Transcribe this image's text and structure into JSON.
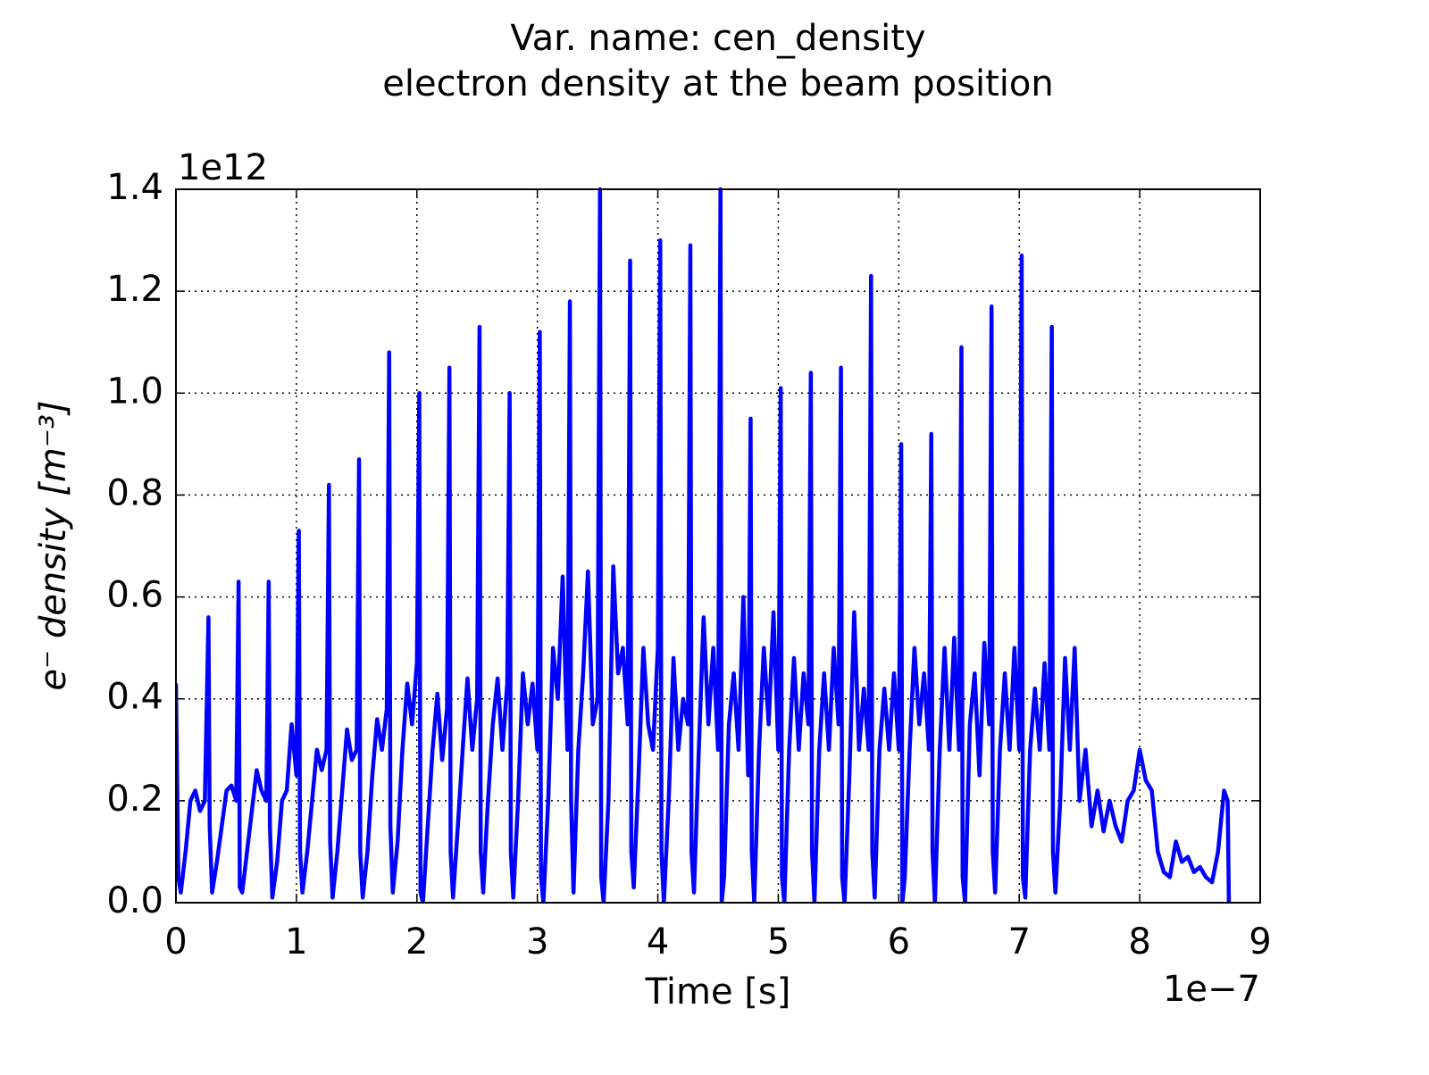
{
  "chart_data": {
    "type": "line",
    "title": "Var. name: cen_density",
    "subtitle": "electron density at the beam position",
    "x_label": "Time [s]",
    "y_label": "e⁻ density [m⁻³]",
    "x_offset": "1e−7",
    "y_offset": "1e12",
    "color": "#0000ff",
    "grid": true,
    "xlim": [
      0,
      9
    ],
    "xticks": [
      0,
      1,
      2,
      3,
      4,
      5,
      6,
      7,
      8,
      9
    ],
    "ylim": [
      0,
      1.4
    ],
    "yticks": [
      {
        "value": 0,
        "label": "0.0"
      },
      0.2,
      0.4,
      0.6,
      0.8,
      {
        "value": 1,
        "label": "1.0"
      },
      1.2,
      1.4
    ],
    "x": [
      0,
      0.02,
      0.04,
      0.08,
      0.12,
      0.16,
      0.2,
      0.24,
      0.27,
      0.28,
      0.3,
      0.34,
      0.38,
      0.42,
      0.46,
      0.5,
      0.52,
      0.53,
      0.55,
      0.59,
      0.63,
      0.67,
      0.71,
      0.75,
      0.77,
      0.78,
      0.8,
      0.84,
      0.88,
      0.92,
      0.96,
      1.0,
      1.02,
      1.03,
      1.05,
      1.09,
      1.13,
      1.17,
      1.21,
      1.25,
      1.27,
      1.28,
      1.3,
      1.34,
      1.38,
      1.42,
      1.46,
      1.5,
      1.52,
      1.53,
      1.55,
      1.59,
      1.63,
      1.67,
      1.71,
      1.75,
      1.77,
      1.78,
      1.8,
      1.84,
      1.88,
      1.92,
      1.96,
      2.0,
      2.02,
      2.03,
      2.05,
      2.09,
      2.13,
      2.17,
      2.21,
      2.25,
      2.27,
      2.28,
      2.3,
      2.34,
      2.38,
      2.42,
      2.46,
      2.5,
      2.52,
      2.53,
      2.55,
      2.59,
      2.63,
      2.67,
      2.71,
      2.75,
      2.77,
      2.78,
      2.8,
      2.84,
      2.88,
      2.92,
      2.96,
      3.0,
      3.02,
      3.03,
      3.05,
      3.09,
      3.13,
      3.17,
      3.21,
      3.25,
      3.27,
      3.28,
      3.3,
      3.34,
      3.38,
      3.42,
      3.46,
      3.5,
      3.52,
      3.53,
      3.55,
      3.59,
      3.63,
      3.67,
      3.71,
      3.75,
      3.77,
      3.78,
      3.8,
      3.84,
      3.88,
      3.92,
      3.96,
      4.0,
      4.02,
      4.03,
      4.05,
      4.09,
      4.13,
      4.17,
      4.21,
      4.25,
      4.27,
      4.28,
      4.3,
      4.34,
      4.38,
      4.42,
      4.46,
      4.5,
      4.52,
      4.53,
      4.55,
      4.59,
      4.63,
      4.67,
      4.71,
      4.75,
      4.77,
      4.78,
      4.8,
      4.84,
      4.88,
      4.92,
      4.96,
      5.0,
      5.02,
      5.03,
      5.05,
      5.09,
      5.13,
      5.17,
      5.21,
      5.25,
      5.27,
      5.28,
      5.3,
      5.34,
      5.38,
      5.42,
      5.46,
      5.5,
      5.52,
      5.53,
      5.55,
      5.59,
      5.63,
      5.67,
      5.71,
      5.75,
      5.77,
      5.78,
      5.8,
      5.84,
      5.88,
      5.92,
      5.96,
      6.0,
      6.02,
      6.03,
      6.05,
      6.09,
      6.13,
      6.17,
      6.21,
      6.25,
      6.27,
      6.28,
      6.3,
      6.34,
      6.38,
      6.42,
      6.46,
      6.5,
      6.52,
      6.53,
      6.55,
      6.59,
      6.63,
      6.67,
      6.71,
      6.75,
      6.77,
      6.78,
      6.8,
      6.84,
      6.88,
      6.92,
      6.96,
      7.0,
      7.02,
      7.03,
      7.05,
      7.09,
      7.13,
      7.17,
      7.21,
      7.25,
      7.27,
      7.28,
      7.3,
      7.34,
      7.38,
      7.42,
      7.46,
      7.5,
      7.55,
      7.6,
      7.65,
      7.7,
      7.75,
      7.8,
      7.85,
      7.9,
      7.95,
      8.0,
      8.05,
      8.1,
      8.15,
      8.2,
      8.25,
      8.3,
      8.35,
      8.4,
      8.45,
      8.5,
      8.55,
      8.6,
      8.65,
      8.7,
      8.73,
      8.74
    ],
    "values": [
      0.43,
      0.05,
      0.02,
      0.1,
      0.2,
      0.22,
      0.18,
      0.2,
      0.56,
      0.15,
      0.02,
      0.08,
      0.15,
      0.22,
      0.23,
      0.2,
      0.63,
      0.03,
      0.02,
      0.1,
      0.18,
      0.26,
      0.22,
      0.2,
      0.63,
      0.15,
      0.01,
      0.08,
      0.2,
      0.22,
      0.35,
      0.25,
      0.73,
      0.1,
      0.02,
      0.1,
      0.2,
      0.3,
      0.26,
      0.3,
      0.82,
      0.12,
      0.01,
      0.1,
      0.22,
      0.34,
      0.28,
      0.3,
      0.87,
      0.1,
      0.01,
      0.1,
      0.25,
      0.36,
      0.3,
      0.38,
      1.08,
      0.15,
      0.02,
      0.12,
      0.3,
      0.43,
      0.35,
      0.47,
      1.0,
      0.02,
      0.0,
      0.15,
      0.3,
      0.41,
      0.28,
      0.38,
      1.05,
      0.1,
      0.01,
      0.15,
      0.3,
      0.44,
      0.3,
      0.4,
      1.13,
      0.1,
      0.02,
      0.2,
      0.35,
      0.44,
      0.3,
      0.43,
      1.0,
      0.1,
      0.01,
      0.2,
      0.45,
      0.35,
      0.43,
      0.3,
      1.12,
      0.05,
      0.0,
      0.2,
      0.5,
      0.4,
      0.64,
      0.3,
      1.18,
      0.2,
      0.02,
      0.3,
      0.45,
      0.65,
      0.35,
      0.4,
      1.4,
      0.05,
      0.0,
      0.2,
      0.66,
      0.45,
      0.5,
      0.35,
      1.26,
      0.1,
      0.03,
      0.25,
      0.5,
      0.35,
      0.3,
      0.5,
      1.3,
      0.1,
      0.0,
      0.2,
      0.48,
      0.3,
      0.4,
      0.35,
      1.29,
      0.1,
      0.02,
      0.3,
      0.56,
      0.35,
      0.5,
      0.3,
      1.4,
      0.0,
      0.05,
      0.35,
      0.45,
      0.3,
      0.6,
      0.25,
      0.95,
      0.1,
      0.0,
      0.3,
      0.5,
      0.35,
      0.57,
      0.3,
      1.01,
      0.05,
      0.0,
      0.3,
      0.48,
      0.3,
      0.45,
      0.35,
      1.04,
      0.1,
      0.0,
      0.3,
      0.45,
      0.3,
      0.5,
      0.35,
      1.05,
      0.05,
      0.0,
      0.25,
      0.57,
      0.3,
      0.42,
      0.3,
      1.23,
      0.1,
      0.01,
      0.3,
      0.42,
      0.3,
      0.45,
      0.3,
      0.9,
      0.0,
      0.05,
      0.3,
      0.5,
      0.35,
      0.45,
      0.3,
      0.92,
      0.1,
      0.0,
      0.3,
      0.5,
      0.3,
      0.52,
      0.3,
      1.09,
      0.05,
      0.0,
      0.35,
      0.45,
      0.25,
      0.51,
      0.35,
      1.17,
      0.1,
      0.02,
      0.3,
      0.45,
      0.3,
      0.5,
      0.3,
      1.27,
      0.05,
      0.01,
      0.3,
      0.42,
      0.3,
      0.47,
      0.3,
      1.13,
      0.1,
      0.02,
      0.2,
      0.48,
      0.3,
      0.5,
      0.2,
      0.3,
      0.15,
      0.22,
      0.14,
      0.2,
      0.15,
      0.12,
      0.2,
      0.22,
      0.3,
      0.24,
      0.22,
      0.1,
      0.06,
      0.05,
      0.12,
      0.08,
      0.09,
      0.06,
      0.07,
      0.05,
      0.04,
      0.1,
      0.22,
      0.2,
      0.0
    ]
  }
}
